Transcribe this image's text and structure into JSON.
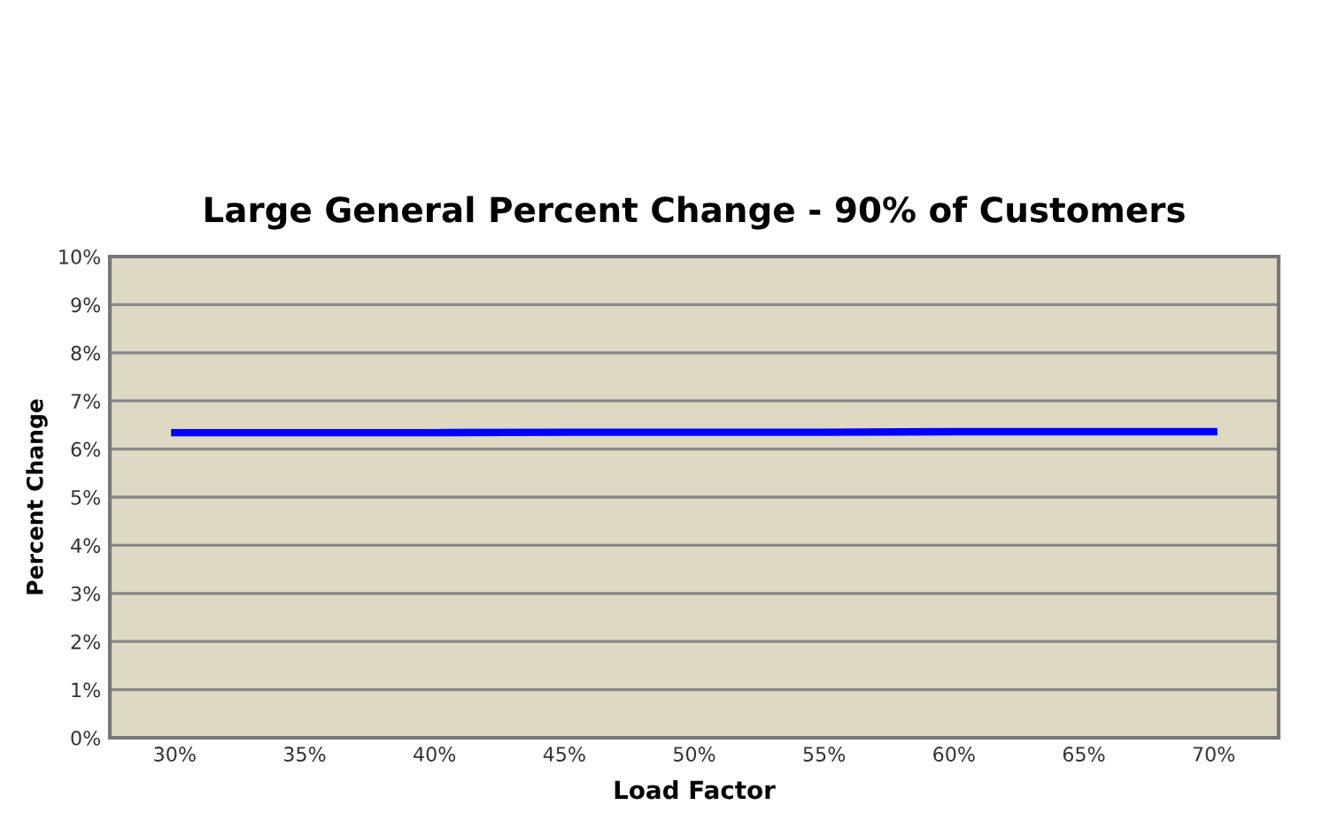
{
  "chart_data": {
    "type": "line",
    "title": "Large General Percent Change - 90% of Customers",
    "xlabel": "Load Factor",
    "ylabel": "Percent Change",
    "categories": [
      "30%",
      "35%",
      "40%",
      "45%",
      "50%",
      "55%",
      "60%",
      "65%",
      "70%"
    ],
    "series": [
      {
        "color": "#0000ff",
        "values": [
          6.34,
          6.34,
          6.34,
          6.35,
          6.35,
          6.35,
          6.36,
          6.36,
          6.36
        ]
      }
    ],
    "ylim": [
      0,
      10
    ],
    "yticks": [
      {
        "value": 0,
        "label": "0%"
      },
      {
        "value": 1,
        "label": "1%"
      },
      {
        "value": 2,
        "label": "2%"
      },
      {
        "value": 3,
        "label": "3%"
      },
      {
        "value": 4,
        "label": "4%"
      },
      {
        "value": 5,
        "label": "5%"
      },
      {
        "value": 6,
        "label": "6%"
      },
      {
        "value": 7,
        "label": "7%"
      },
      {
        "value": 8,
        "label": "8%"
      },
      {
        "value": 9,
        "label": "9%"
      },
      {
        "value": 10,
        "label": "10%"
      }
    ],
    "grid": "y",
    "marker": "none",
    "line_style": "solid",
    "legend": false
  }
}
